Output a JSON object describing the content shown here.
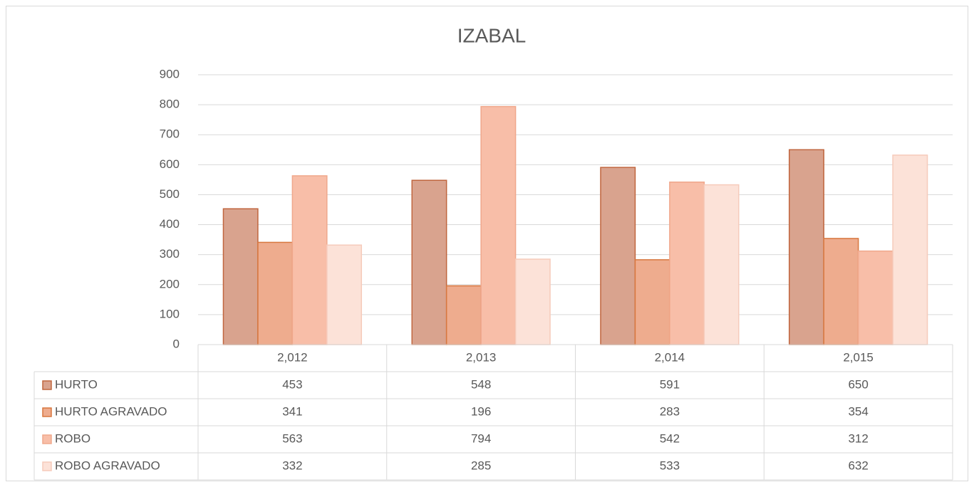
{
  "chart_data": {
    "type": "bar",
    "title": "IZABAL",
    "categories": [
      "2,012",
      "2,013",
      "2,014",
      "2,015"
    ],
    "series": [
      {
        "name": "HURTO",
        "color": "#d9a38e",
        "edgecolor": "#c0663f",
        "values": [
          453,
          548,
          591,
          650
        ]
      },
      {
        "name": "HURTO AGRAVADO",
        "color": "#eeac8e",
        "edgecolor": "#d8773f",
        "values": [
          341,
          196,
          283,
          354
        ]
      },
      {
        "name": "ROBO",
        "color": "#f8bea8",
        "edgecolor": "#f0a88c",
        "values": [
          563,
          794,
          542,
          312
        ]
      },
      {
        "name": "ROBO AGRAVADO",
        "color": "#fce2d8",
        "edgecolor": "#f6cbbb",
        "values": [
          332,
          285,
          533,
          632
        ]
      }
    ],
    "ylim": [
      0,
      900
    ],
    "yticks": [
      0,
      100,
      200,
      300,
      400,
      500,
      600,
      700,
      800,
      900
    ],
    "grid": true,
    "data_table": true
  }
}
